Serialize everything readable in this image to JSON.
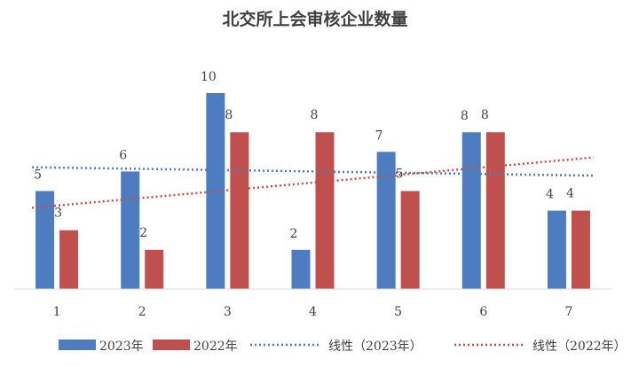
{
  "chart_data": {
    "type": "bar",
    "title": "北交所上会审核企业数量",
    "categories": [
      "1",
      "2",
      "3",
      "4",
      "5",
      "6",
      "7"
    ],
    "series": [
      {
        "name": "2023年",
        "values": [
          5,
          6,
          10,
          2,
          7,
          8,
          4
        ],
        "color": "#4E7CC0"
      },
      {
        "name": "2022年",
        "values": [
          3,
          2,
          8,
          8,
          5,
          8,
          4
        ],
        "color": "#C0504D"
      }
    ],
    "trendlines": [
      {
        "name": "线性（2023年）",
        "of_series": "2023年",
        "type": "linear",
        "style": "dotted",
        "color": "#4E7CC0"
      },
      {
        "name": "线性（2022年）",
        "of_series": "2022年",
        "type": "linear",
        "style": "dotted",
        "color": "#C0504D"
      }
    ],
    "ylim": [
      0,
      10
    ],
    "data_labels": true,
    "grid": false,
    "legend_position": "bottom",
    "xlabel": "",
    "ylabel": ""
  }
}
